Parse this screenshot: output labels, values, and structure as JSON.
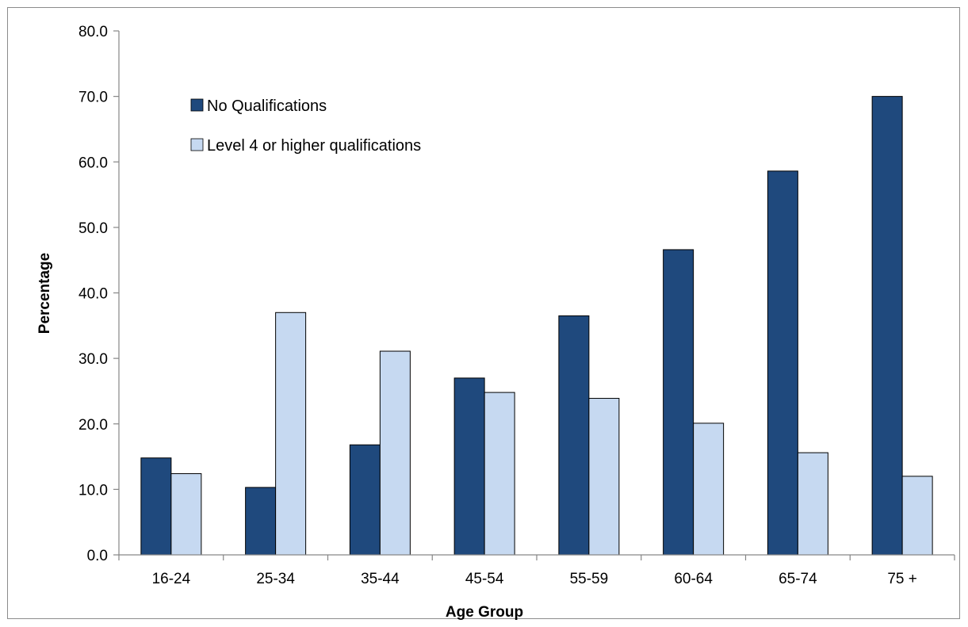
{
  "chart_data": {
    "type": "bar",
    "title": "",
    "xlabel": "Age Group",
    "ylabel": "Percentage",
    "ylim": [
      0,
      80
    ],
    "yticks": [
      "0.0",
      "10.0",
      "20.0",
      "30.0",
      "40.0",
      "50.0",
      "60.0",
      "70.0",
      "80.0"
    ],
    "grid": false,
    "legend_position": "top-left",
    "categories": [
      "16-24",
      "25-34",
      "35-44",
      "45-54",
      "55-59",
      "60-64",
      "65-74",
      "75 +"
    ],
    "series": [
      {
        "name": "No Qualifications",
        "color": "#1f497d",
        "values": [
          14.8,
          10.3,
          16.8,
          27.0,
          36.5,
          46.6,
          58.6,
          70.0
        ]
      },
      {
        "name": "Level 4 or higher qualifications",
        "color": "#c6d9f1",
        "values": [
          12.4,
          37.0,
          31.1,
          24.8,
          23.9,
          20.1,
          15.6,
          12.0
        ]
      }
    ]
  }
}
